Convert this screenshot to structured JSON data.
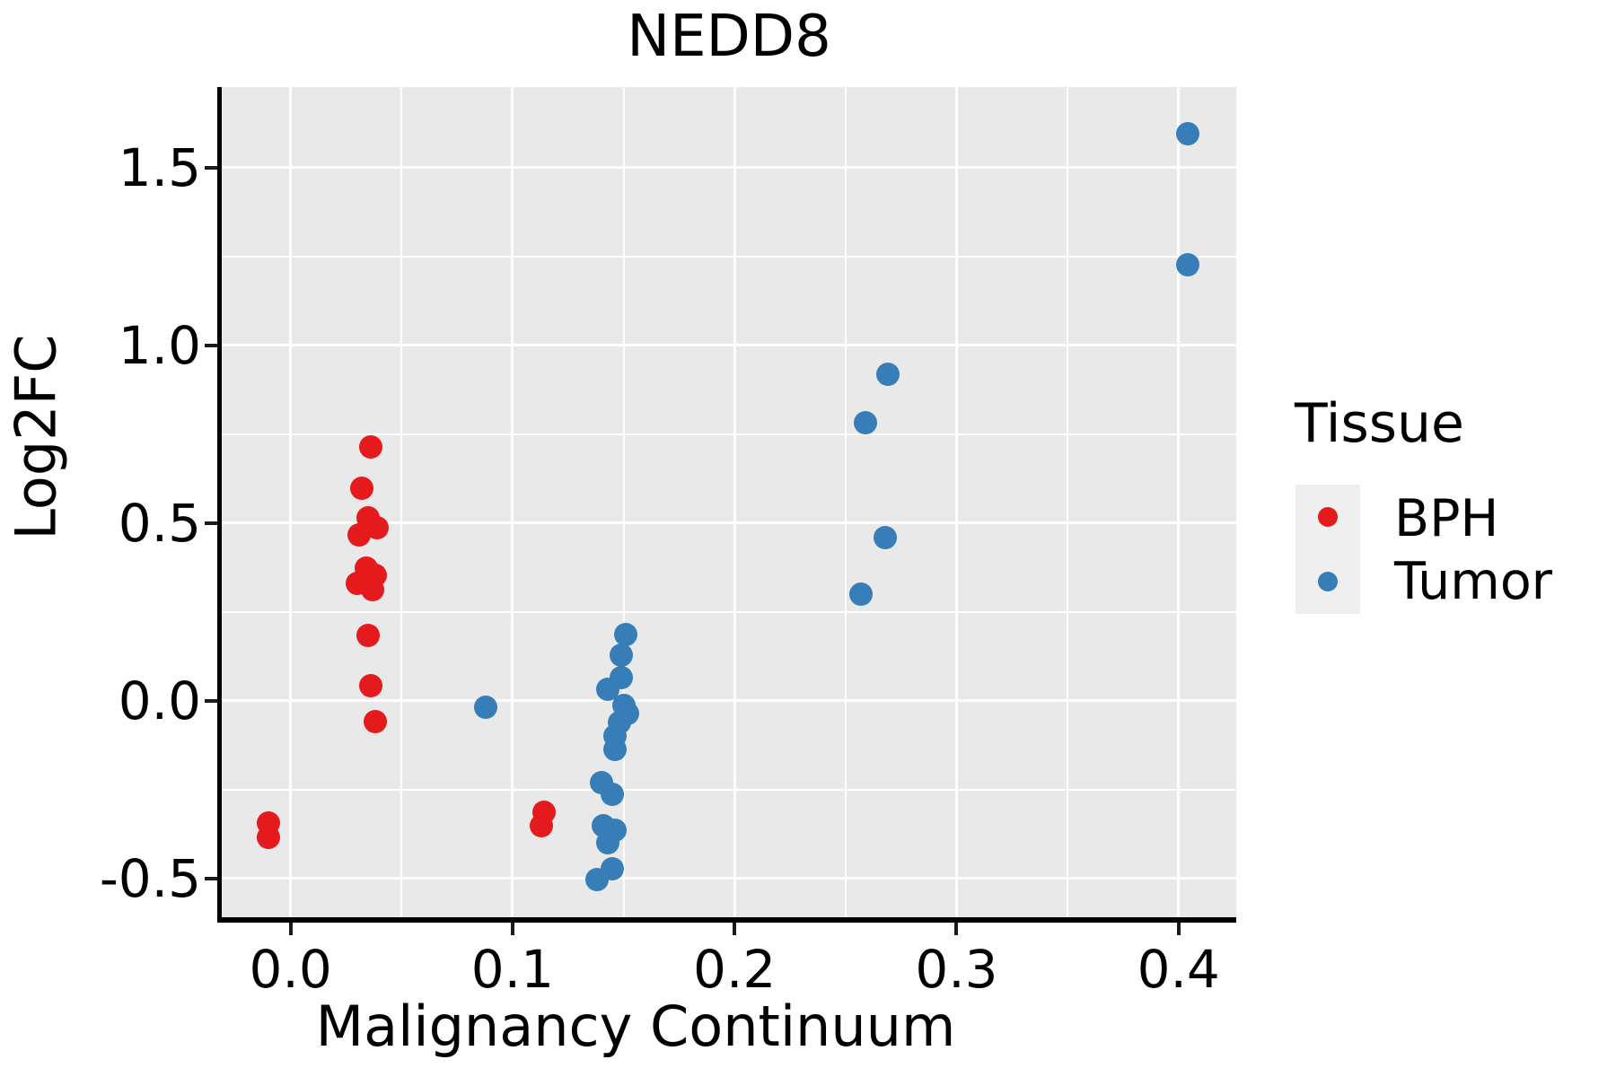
{
  "chart_data": {
    "type": "scatter",
    "title": "NEDD8",
    "xlabel": "Malignancy Continuum",
    "ylabel": "Log2FC",
    "legend_title": "Tissue",
    "legend_position": "right",
    "grid": true,
    "plot_background": "#E9E9E9",
    "gridline_color": "#FFFFFF",
    "xlim": [
      -0.031,
      0.426
    ],
    "ylim": [
      -0.609,
      1.727
    ],
    "x_ticks": {
      "values": [
        0.0,
        0.1,
        0.2,
        0.3,
        0.4
      ],
      "labels": [
        "0.0",
        "0.1",
        "0.2",
        "0.3",
        "0.4"
      ]
    },
    "y_ticks": {
      "values": [
        -0.5,
        0.0,
        0.5,
        1.0,
        1.5
      ],
      "labels": [
        "-0.5",
        "0.0",
        "0.5",
        "1.0",
        "1.5"
      ]
    },
    "x_minor_ticks": [
      0.05,
      0.15,
      0.25,
      0.35
    ],
    "y_minor_ticks": [
      -0.25,
      0.25,
      0.75,
      1.25
    ],
    "series": [
      {
        "name": "BPH",
        "color": "#E41A1C",
        "points": [
          [
            -0.01,
            -0.343
          ],
          [
            -0.01,
            -0.385
          ],
          [
            0.036,
            0.715
          ],
          [
            0.032,
            0.598
          ],
          [
            0.035,
            0.516
          ],
          [
            0.039,
            0.487
          ],
          [
            0.031,
            0.466
          ],
          [
            0.034,
            0.373
          ],
          [
            0.038,
            0.352
          ],
          [
            0.03,
            0.331
          ],
          [
            0.037,
            0.314
          ],
          [
            0.035,
            0.184
          ],
          [
            0.036,
            0.043
          ],
          [
            0.038,
            -0.059
          ],
          [
            0.114,
            -0.313
          ],
          [
            0.113,
            -0.351
          ]
        ]
      },
      {
        "name": "Tumor",
        "color": "#377EB8",
        "points": [
          [
            0.088,
            -0.017
          ],
          [
            0.151,
            0.186
          ],
          [
            0.149,
            0.129
          ],
          [
            0.149,
            0.066
          ],
          [
            0.143,
            0.032
          ],
          [
            0.15,
            -0.014
          ],
          [
            0.152,
            -0.035
          ],
          [
            0.148,
            -0.061
          ],
          [
            0.146,
            -0.098
          ],
          [
            0.146,
            -0.136
          ],
          [
            0.14,
            -0.229
          ],
          [
            0.145,
            -0.263
          ],
          [
            0.141,
            -0.351
          ],
          [
            0.146,
            -0.364
          ],
          [
            0.143,
            -0.4
          ],
          [
            0.145,
            -0.473
          ],
          [
            0.138,
            -0.503
          ],
          [
            0.257,
            0.3
          ],
          [
            0.268,
            0.46
          ],
          [
            0.259,
            0.783
          ],
          [
            0.269,
            0.919
          ],
          [
            0.404,
            1.596
          ],
          [
            0.404,
            1.226
          ]
        ]
      }
    ]
  }
}
